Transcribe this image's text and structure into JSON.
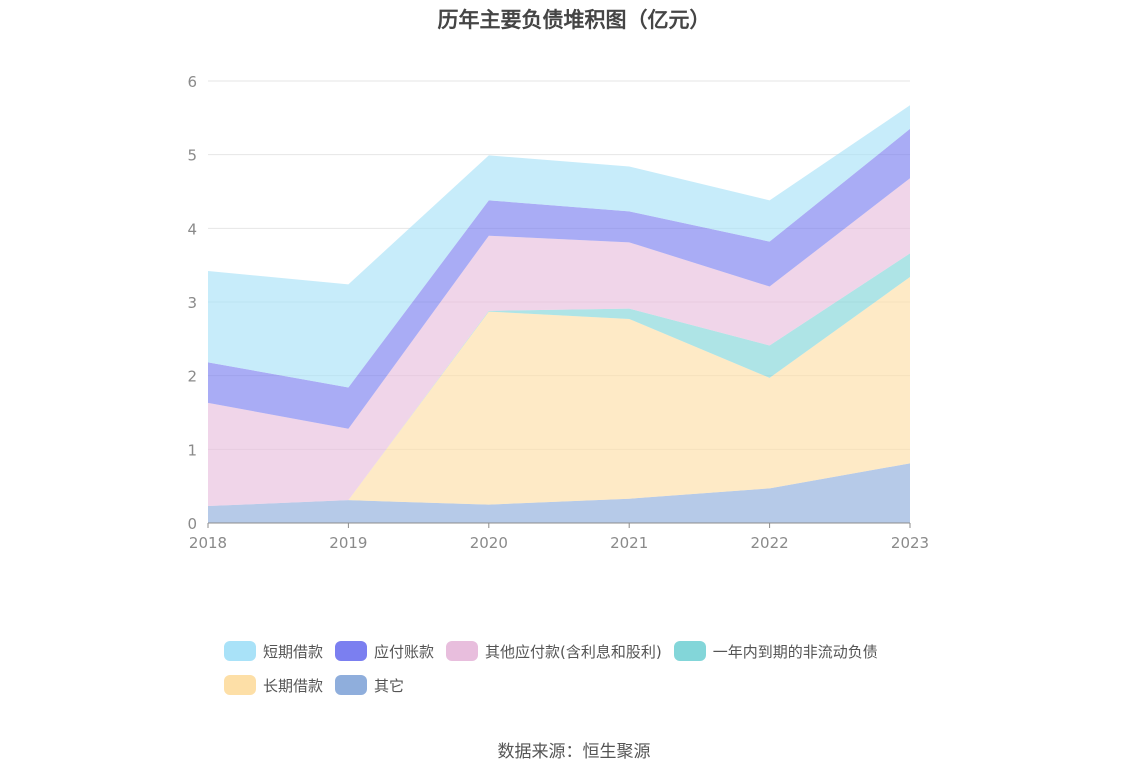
{
  "title": "历年主要负债堆积图（亿元）",
  "source": "数据来源：恒生聚源",
  "chart_data": {
    "type": "area",
    "stacked": true,
    "categories": [
      "2018",
      "2019",
      "2020",
      "2021",
      "2022",
      "2023"
    ],
    "ylim": [
      0,
      6
    ],
    "yticks": [
      0,
      1,
      2,
      3,
      4,
      5,
      6
    ],
    "grid": true,
    "legend_position": "bottom",
    "series": [
      {
        "name": "其它",
        "color": "#8FAEDC",
        "values": [
          0.23,
          0.31,
          0.25,
          0.33,
          0.47,
          0.81
        ]
      },
      {
        "name": "长期借款",
        "color": "#FDDFA7",
        "values": [
          0.0,
          0.0,
          2.62,
          2.44,
          1.5,
          2.53
        ]
      },
      {
        "name": "一年内到期的非流动负债",
        "color": "#83D6D9",
        "values": [
          0.0,
          0.0,
          0.01,
          0.14,
          0.44,
          0.32
        ]
      },
      {
        "name": "其他应付款(含利息和股利)",
        "color": "#E8BEDD",
        "values": [
          1.4,
          0.97,
          1.02,
          0.9,
          0.8,
          1.02
        ]
      },
      {
        "name": "应付账款",
        "color": "#7B7FF0",
        "values": [
          0.55,
          0.56,
          0.48,
          0.42,
          0.61,
          0.67
        ]
      },
      {
        "name": "短期借款",
        "color": "#A9E2F8",
        "values": [
          1.24,
          1.4,
          0.61,
          0.61,
          0.56,
          0.32
        ]
      }
    ],
    "legend_order": [
      "短期借款",
      "应付账款",
      "其他应付款(含利息和股利)",
      "一年内到期的非流动负债",
      "长期借款",
      "其它"
    ]
  }
}
